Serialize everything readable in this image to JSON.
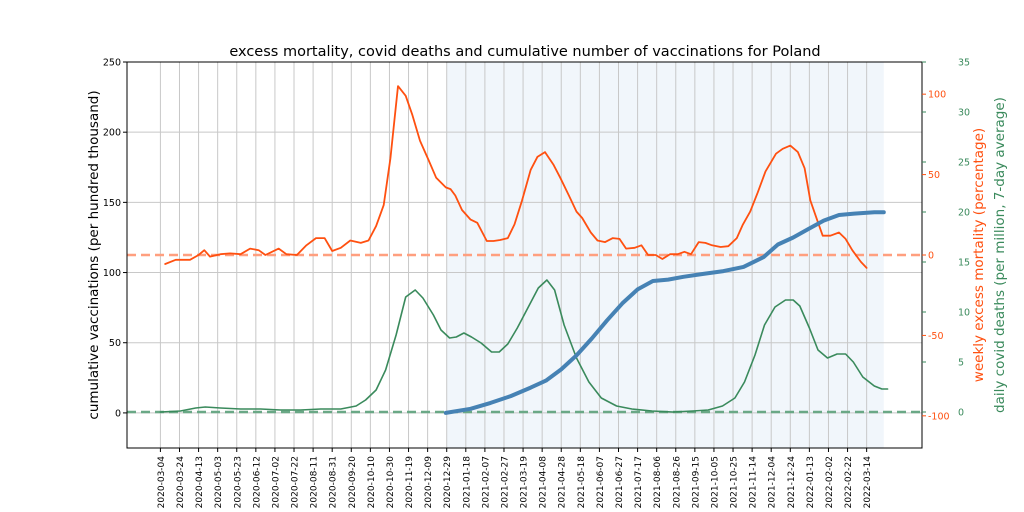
{
  "chart_data": {
    "type": "line",
    "title": "excess mortality, covid deaths and cumulative number of vaccinations for Poland",
    "xlim": [
      "2020-01-29",
      "2022-05-11"
    ],
    "x_ticks": [
      "2020-03-04",
      "2020-03-24",
      "2020-04-13",
      "2020-05-03",
      "2020-05-23",
      "2020-06-12",
      "2020-07-02",
      "2020-07-22",
      "2020-08-11",
      "2020-08-31",
      "2020-09-20",
      "2020-10-10",
      "2020-10-30",
      "2020-11-19",
      "2020-12-09",
      "2020-12-29",
      "2021-01-18",
      "2021-02-07",
      "2021-02-27",
      "2021-03-19",
      "2021-04-08",
      "2021-04-28",
      "2021-05-18",
      "2021-06-07",
      "2021-06-27",
      "2021-07-17",
      "2021-08-06",
      "2021-08-26",
      "2021-09-15",
      "2021-10-05",
      "2021-10-25",
      "2021-11-14",
      "2021-12-04",
      "2021-12-24",
      "2022-01-13",
      "2022-02-02",
      "2022-02-22",
      "2022-03-14"
    ],
    "grid": true,
    "shaded_period": [
      "2020-12-29",
      "2022-04-01"
    ],
    "axes": {
      "left": {
        "label": "cumulative vaccinations (per hundred thousand)",
        "ylim": [
          -25,
          250
        ],
        "ticks": [
          0,
          50,
          100,
          150,
          200,
          250
        ],
        "color": "#000000"
      },
      "right_excess": {
        "label": "weekly excess mortality (percentage)",
        "ylim": [
          -120,
          120
        ],
        "ticks": [
          -100,
          -50,
          0,
          50,
          100
        ],
        "color": "#ff5010"
      },
      "right_deaths": {
        "label": "daily covid deaths (per million, 7-day average)",
        "ylim": [
          -3.6,
          35
        ],
        "ticks": [
          0,
          5,
          10,
          15,
          20,
          25,
          30,
          35
        ],
        "color": "#3a8a5c"
      }
    },
    "series": [
      {
        "axis": "right_excess",
        "color": "#ff5010",
        "x": [
          "2020-03-09",
          "2020-03-20",
          "2020-04-04",
          "2020-04-13",
          "2020-04-19",
          "2020-04-25",
          "2020-05-06",
          "2020-05-16",
          "2020-05-27",
          "2020-06-06",
          "2020-06-15",
          "2020-06-22",
          "2020-07-06",
          "2020-07-14",
          "2020-07-25",
          "2020-08-04",
          "2020-08-14",
          "2020-08-23",
          "2020-08-31",
          "2020-09-09",
          "2020-09-19",
          "2020-09-30",
          "2020-10-08",
          "2020-10-16",
          "2020-10-24",
          "2020-10-31",
          "2020-11-08",
          "2020-11-16",
          "2020-11-23",
          "2020-12-01",
          "2020-12-10",
          "2020-12-18",
          "2020-12-28",
          "2021-01-02",
          "2021-01-07",
          "2021-01-14",
          "2021-01-23",
          "2021-01-30",
          "2021-02-09",
          "2021-02-16",
          "2021-02-23",
          "2021-03-03",
          "2021-03-10",
          "2021-03-18",
          "2021-03-27",
          "2021-04-03",
          "2021-04-11",
          "2021-04-20",
          "2021-04-27",
          "2021-05-06",
          "2021-05-14",
          "2021-05-20",
          "2021-05-29",
          "2021-06-05",
          "2021-06-13",
          "2021-06-21",
          "2021-06-28",
          "2021-07-05",
          "2021-07-14",
          "2021-07-21",
          "2021-07-28",
          "2021-08-05",
          "2021-08-12",
          "2021-08-20",
          "2021-08-28",
          "2021-09-04",
          "2021-09-11",
          "2021-09-19",
          "2021-09-26",
          "2021-10-03",
          "2021-10-12",
          "2021-10-20",
          "2021-10-29",
          "2021-11-04",
          "2021-11-12",
          "2021-11-20",
          "2021-11-28",
          "2021-12-09",
          "2021-12-16",
          "2021-12-24",
          "2022-01-01",
          "2022-01-08",
          "2022-01-14",
          "2022-01-21",
          "2022-01-27",
          "2022-02-04",
          "2022-02-13",
          "2022-02-20",
          "2022-02-27",
          "2022-03-08",
          "2022-03-14"
        ],
        "values": [
          -5.6,
          -3,
          -3,
          0,
          3,
          -1,
          0.5,
          1,
          0.5,
          4,
          3,
          0,
          4,
          0.5,
          0,
          6,
          10.5,
          10.5,
          2.5,
          4.5,
          9,
          7.5,
          9,
          18,
          31,
          60,
          105,
          99,
          87,
          71,
          59,
          48,
          42,
          41,
          37,
          28,
          22,
          20,
          8.7,
          8.7,
          9.3,
          10.5,
          19,
          34,
          53,
          61,
          64,
          56,
          48,
          37,
          27,
          23,
          14,
          9,
          8,
          10.5,
          10,
          4,
          4.5,
          6,
          0,
          0,
          -2.5,
          0.5,
          0.5,
          2,
          0.5,
          8,
          7.5,
          6,
          5,
          5.5,
          10.5,
          18.6,
          27,
          39,
          52,
          63,
          66,
          68,
          64,
          54,
          34,
          22,
          12,
          12,
          14,
          10,
          3,
          -4.3,
          -8
        ]
      },
      {
        "axis": "right_deaths",
        "color": "#3a8a5c",
        "x": [
          "2020-03-04",
          "2020-03-25",
          "2020-04-10",
          "2020-04-20",
          "2020-05-06",
          "2020-05-27",
          "2020-06-17",
          "2020-07-08",
          "2020-07-29",
          "2020-08-19",
          "2020-09-09",
          "2020-09-25",
          "2020-10-05",
          "2020-10-16",
          "2020-10-26",
          "2020-11-06",
          "2020-11-16",
          "2020-11-26",
          "2020-12-04",
          "2020-12-15",
          "2020-12-23",
          "2021-01-01",
          "2021-01-08",
          "2021-01-16",
          "2021-01-24",
          "2021-02-03",
          "2021-02-14",
          "2021-02-22",
          "2021-03-03",
          "2021-03-13",
          "2021-03-24",
          "2021-04-04",
          "2021-04-13",
          "2021-04-21",
          "2021-05-01",
          "2021-05-14",
          "2021-05-27",
          "2021-06-09",
          "2021-06-25",
          "2021-07-11",
          "2021-08-01",
          "2021-08-23",
          "2021-09-13",
          "2021-09-29",
          "2021-10-14",
          "2021-10-27",
          "2021-11-06",
          "2021-11-17",
          "2021-11-27",
          "2021-12-08",
          "2021-12-19",
          "2021-12-27",
          "2022-01-03",
          "2022-01-13",
          "2022-01-22",
          "2022-02-01",
          "2022-02-11",
          "2022-02-20",
          "2022-02-28",
          "2022-03-10",
          "2022-03-22",
          "2022-03-30",
          "2022-04-05"
        ],
        "values": [
          0,
          0.1,
          0.4,
          0.5,
          0.4,
          0.3,
          0.3,
          0.2,
          0.2,
          0.3,
          0.3,
          0.6,
          1.2,
          2.2,
          4.2,
          7.7,
          11.5,
          12.2,
          11.4,
          9.7,
          8.2,
          7.4,
          7.5,
          7.9,
          7.5,
          6.9,
          6.0,
          6.0,
          6.8,
          8.4,
          10.4,
          12.4,
          13.2,
          12.2,
          8.7,
          5.4,
          3.0,
          1.4,
          0.6,
          0.3,
          0.1,
          0,
          0.1,
          0.2,
          0.6,
          1.4,
          3.0,
          5.7,
          8.7,
          10.5,
          11.2,
          11.2,
          10.6,
          8.4,
          6.2,
          5.4,
          5.8,
          5.8,
          5.0,
          3.5,
          2.6,
          2.3,
          2.3
        ]
      },
      {
        "axis": "left",
        "color": "#4682b4",
        "x": [
          "2020-12-28",
          "2021-01-23",
          "2021-02-13",
          "2021-03-06",
          "2021-03-27",
          "2021-04-12",
          "2021-04-28",
          "2021-05-14",
          "2021-05-30",
          "2021-06-15",
          "2021-07-01",
          "2021-07-17",
          "2021-08-02",
          "2021-08-18",
          "2021-09-03",
          "2021-09-24",
          "2021-10-15",
          "2021-11-05",
          "2021-11-26",
          "2021-12-11",
          "2021-12-27",
          "2022-01-12",
          "2022-01-28",
          "2022-02-13",
          "2022-03-01",
          "2022-03-22",
          "2022-04-01"
        ],
        "values": [
          0,
          2.9,
          7.1,
          12,
          18,
          23,
          31,
          41,
          53,
          66,
          78,
          88,
          94,
          95,
          97,
          99,
          101,
          104,
          111,
          120,
          125,
          131,
          137,
          141,
          142,
          143,
          143
        ]
      }
    ],
    "reference_lines": [
      {
        "axis": "right_excess",
        "value": 0,
        "color": "#ff9f7f",
        "style": "dashed"
      },
      {
        "axis": "right_deaths",
        "value": 0,
        "color": "#6aa886",
        "style": "dashed"
      }
    ]
  }
}
